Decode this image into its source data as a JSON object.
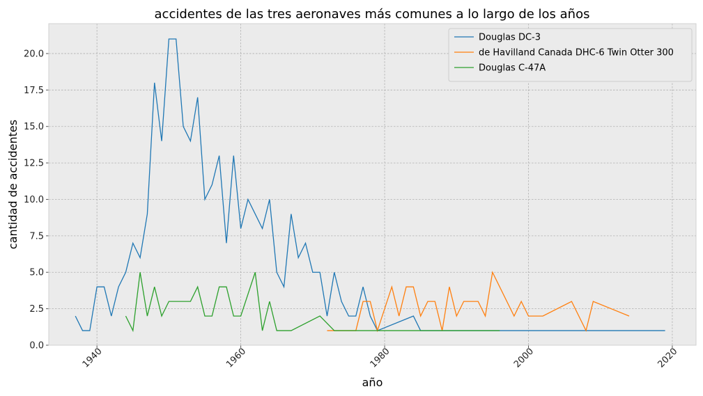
{
  "chart_data": {
    "type": "line",
    "title": "accidentes de las tres aeronaves más comunes a lo largo de los años",
    "xlabel": "año",
    "ylabel": "cantidad de accidentes",
    "xlim": [
      1933.3,
      2023.3
    ],
    "ylim": [
      0,
      22.05
    ],
    "xticks": [
      1940,
      1960,
      1980,
      2000,
      2020
    ],
    "xtick_labels": [
      "1940",
      "1960",
      "1980",
      "2000",
      "2020"
    ],
    "yticks": [
      0,
      2.5,
      5,
      7.5,
      10,
      12.5,
      15,
      17.5,
      20
    ],
    "ytick_labels": [
      "0.0",
      "2.5",
      "5.0",
      "7.5",
      "10.0",
      "12.5",
      "15.0",
      "17.5",
      "20.0"
    ],
    "grid": true,
    "legend_position": "top-right",
    "series": [
      {
        "name": "Douglas DC-3",
        "color": "#1f77b4",
        "points": [
          [
            1937,
            2
          ],
          [
            1938,
            1
          ],
          [
            1939,
            1
          ],
          [
            1940,
            4
          ],
          [
            1941,
            4
          ],
          [
            1942,
            2
          ],
          [
            1943,
            4
          ],
          [
            1944,
            5
          ],
          [
            1945,
            7
          ],
          [
            1946,
            6
          ],
          [
            1947,
            9
          ],
          [
            1948,
            18
          ],
          [
            1949,
            14
          ],
          [
            1950,
            21
          ],
          [
            1951,
            21
          ],
          [
            1952,
            15
          ],
          [
            1953,
            14
          ],
          [
            1954,
            17
          ],
          [
            1955,
            10
          ],
          [
            1956,
            11
          ],
          [
            1957,
            13
          ],
          [
            1958,
            7
          ],
          [
            1959,
            13
          ],
          [
            1960,
            8
          ],
          [
            1961,
            10
          ],
          [
            1962,
            9
          ],
          [
            1963,
            8
          ],
          [
            1964,
            10
          ],
          [
            1965,
            5
          ],
          [
            1966,
            4
          ],
          [
            1967,
            9
          ],
          [
            1968,
            6
          ],
          [
            1969,
            7
          ],
          [
            1970,
            5
          ],
          [
            1971,
            5
          ],
          [
            1972,
            2
          ],
          [
            1973,
            5
          ],
          [
            1974,
            3
          ],
          [
            1975,
            2
          ],
          [
            1976,
            2
          ],
          [
            1977,
            4
          ],
          [
            1978,
            2
          ],
          [
            1979,
            1
          ],
          [
            1984,
            2
          ],
          [
            1985,
            1
          ],
          [
            1995,
            1
          ],
          [
            2000,
            1
          ],
          [
            2010,
            1
          ],
          [
            2019,
            1
          ]
        ]
      },
      {
        "name": "de Havilland Canada DHC-6 Twin Otter 300",
        "color": "#ff7f0e",
        "points": [
          [
            1972,
            1
          ],
          [
            1973,
            1
          ],
          [
            1976,
            1
          ],
          [
            1977,
            3
          ],
          [
            1978,
            3
          ],
          [
            1979,
            1
          ],
          [
            1981,
            4
          ],
          [
            1982,
            2
          ],
          [
            1983,
            4
          ],
          [
            1984,
            4
          ],
          [
            1985,
            2
          ],
          [
            1986,
            3
          ],
          [
            1987,
            3
          ],
          [
            1988,
            1
          ],
          [
            1989,
            4
          ],
          [
            1990,
            2
          ],
          [
            1991,
            3
          ],
          [
            1992,
            3
          ],
          [
            1993,
            3
          ],
          [
            1994,
            2
          ],
          [
            1995,
            5
          ],
          [
            1998,
            2
          ],
          [
            1999,
            3
          ],
          [
            2000,
            2
          ],
          [
            2002,
            2
          ],
          [
            2006,
            3
          ],
          [
            2008,
            1
          ],
          [
            2009,
            3
          ],
          [
            2014,
            2
          ]
        ]
      },
      {
        "name": "Douglas C-47A",
        "color": "#2ca02c",
        "points": [
          [
            1944,
            2
          ],
          [
            1945,
            1
          ],
          [
            1946,
            5
          ],
          [
            1947,
            2
          ],
          [
            1948,
            4
          ],
          [
            1949,
            2
          ],
          [
            1950,
            3
          ],
          [
            1951,
            3
          ],
          [
            1952,
            3
          ],
          [
            1953,
            3
          ],
          [
            1954,
            4
          ],
          [
            1955,
            2
          ],
          [
            1956,
            2
          ],
          [
            1957,
            4
          ],
          [
            1958,
            4
          ],
          [
            1959,
            2
          ],
          [
            1960,
            2
          ],
          [
            1962,
            5
          ],
          [
            1963,
            1
          ],
          [
            1964,
            3
          ],
          [
            1965,
            1
          ],
          [
            1967,
            1
          ],
          [
            1971,
            2
          ],
          [
            1973,
            1
          ],
          [
            1976,
            1
          ],
          [
            1980,
            1
          ],
          [
            1990,
            1
          ],
          [
            1996,
            1
          ]
        ]
      }
    ]
  }
}
